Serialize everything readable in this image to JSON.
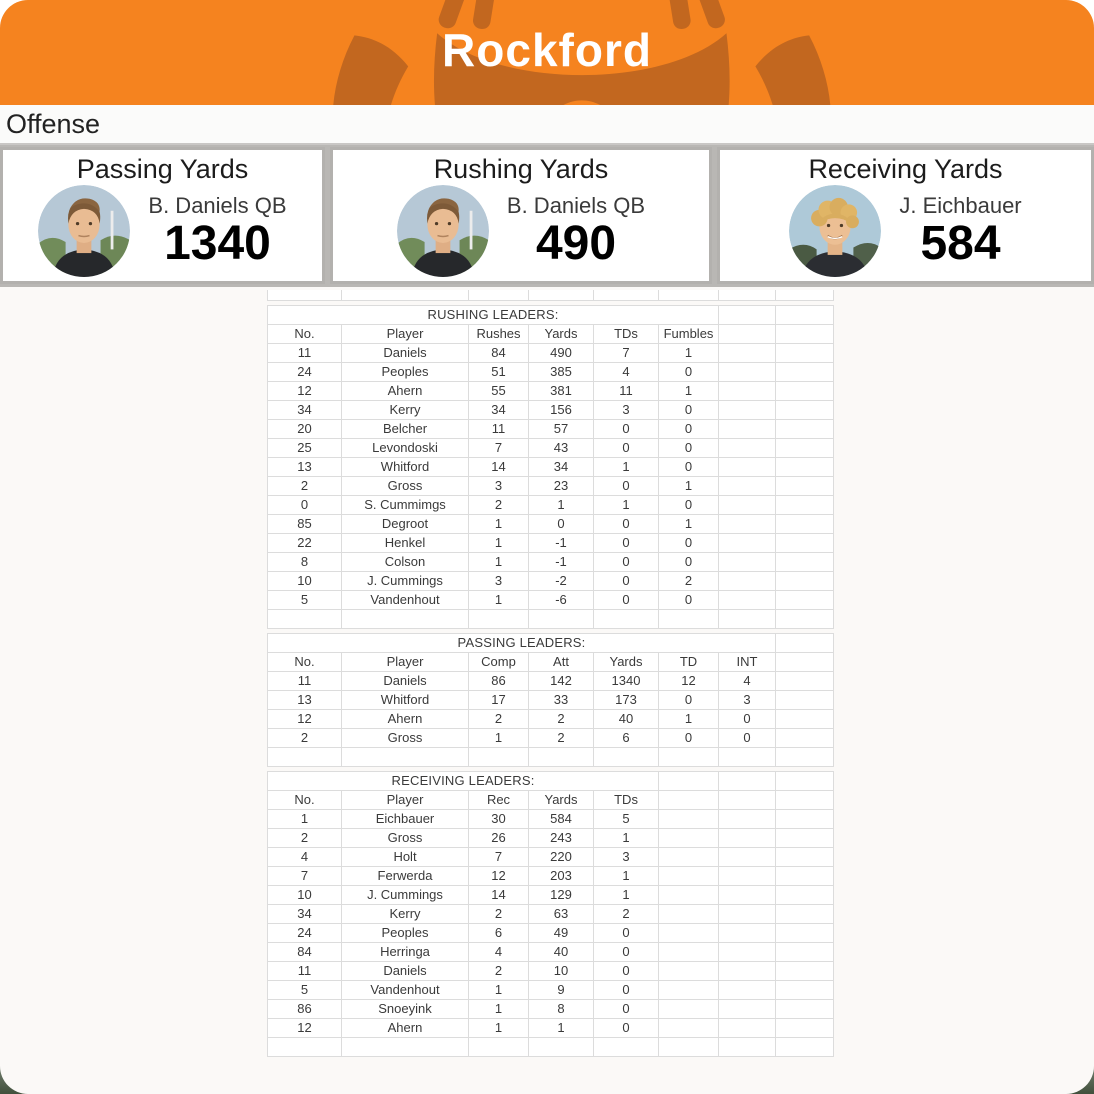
{
  "team": {
    "name": "Rockford"
  },
  "colors": {
    "banner_orange": "#F5831F",
    "logo_dark_orange": "#C2671F",
    "corner_background_green": "#41503C",
    "card_border_gray": "#B3B1AE"
  },
  "icons": {
    "mascot": "mascot-logo",
    "player_photo_daniels": "player-photo",
    "player_photo_eichbauer": "player-photo"
  },
  "section": {
    "title": "Offense"
  },
  "leader_cards": [
    {
      "title": "Passing Yards",
      "player": "B. Daniels QB",
      "value": "1340"
    },
    {
      "title": "Rushing Yards",
      "player": "B. Daniels QB",
      "value": "490"
    },
    {
      "title": "Receiving Yards",
      "player": "J. Eichbauer",
      "value": "584"
    }
  ],
  "tables": {
    "rushing": {
      "title": "RUSHING LEADERS:",
      "headers": [
        "No.",
        "Player",
        "Rushes",
        "Yards",
        "TDs",
        "Fumbles"
      ],
      "rows": [
        [
          "11",
          "Daniels",
          "84",
          "490",
          "7",
          "1"
        ],
        [
          "24",
          "Peoples",
          "51",
          "385",
          "4",
          "0"
        ],
        [
          "12",
          "Ahern",
          "55",
          "381",
          "11",
          "1"
        ],
        [
          "34",
          "Kerry",
          "34",
          "156",
          "3",
          "0"
        ],
        [
          "20",
          "Belcher",
          "11",
          "57",
          "0",
          "0"
        ],
        [
          "25",
          "Levondoski",
          "7",
          "43",
          "0",
          "0"
        ],
        [
          "13",
          "Whitford",
          "14",
          "34",
          "1",
          "0"
        ],
        [
          "2",
          "Gross",
          "3",
          "23",
          "0",
          "1"
        ],
        [
          "0",
          "S. Cummimgs",
          "2",
          "1",
          "1",
          "0"
        ],
        [
          "85",
          "Degroot",
          "1",
          "0",
          "0",
          "1"
        ],
        [
          "22",
          "Henkel",
          "1",
          "-1",
          "0",
          "0"
        ],
        [
          "8",
          "Colson",
          "1",
          "-1",
          "0",
          "0"
        ],
        [
          "10",
          "J. Cummings",
          "3",
          "-2",
          "0",
          "2"
        ],
        [
          "5",
          "Vandenhout",
          "1",
          "-6",
          "0",
          "0"
        ]
      ]
    },
    "passing": {
      "title": "PASSING LEADERS:",
      "headers": [
        "No.",
        "Player",
        "Comp",
        "Att",
        "Yards",
        "TD",
        "INT"
      ],
      "rows": [
        [
          "11",
          "Daniels",
          "86",
          "142",
          "1340",
          "12",
          "4"
        ],
        [
          "13",
          "Whitford",
          "17",
          "33",
          "173",
          "0",
          "3"
        ],
        [
          "12",
          "Ahern",
          "2",
          "2",
          "40",
          "1",
          "0"
        ],
        [
          "2",
          "Gross",
          "1",
          "2",
          "6",
          "0",
          "0"
        ]
      ]
    },
    "receiving": {
      "title": "RECEIVING LEADERS:",
      "headers": [
        "No.",
        "Player",
        "Rec",
        "Yards",
        "TDs"
      ],
      "rows": [
        [
          "1",
          "Eichbauer",
          "30",
          "584",
          "5"
        ],
        [
          "2",
          "Gross",
          "26",
          "243",
          "1"
        ],
        [
          "4",
          "Holt",
          "7",
          "220",
          "3"
        ],
        [
          "7",
          "Ferwerda",
          "12",
          "203",
          "1"
        ],
        [
          "10",
          "J. Cummings",
          "14",
          "129",
          "1"
        ],
        [
          "34",
          "Kerry",
          "2",
          "63",
          "2"
        ],
        [
          "24",
          "Peoples",
          "6",
          "49",
          "0"
        ],
        [
          "84",
          "Herringa",
          "4",
          "40",
          "0"
        ],
        [
          "11",
          "Daniels",
          "2",
          "10",
          "0"
        ],
        [
          "5",
          "Vandenhout",
          "1",
          "9",
          "0"
        ],
        [
          "86",
          "Snoeyink",
          "1",
          "8",
          "0"
        ],
        [
          "12",
          "Ahern",
          "1",
          "1",
          "0"
        ]
      ]
    }
  }
}
